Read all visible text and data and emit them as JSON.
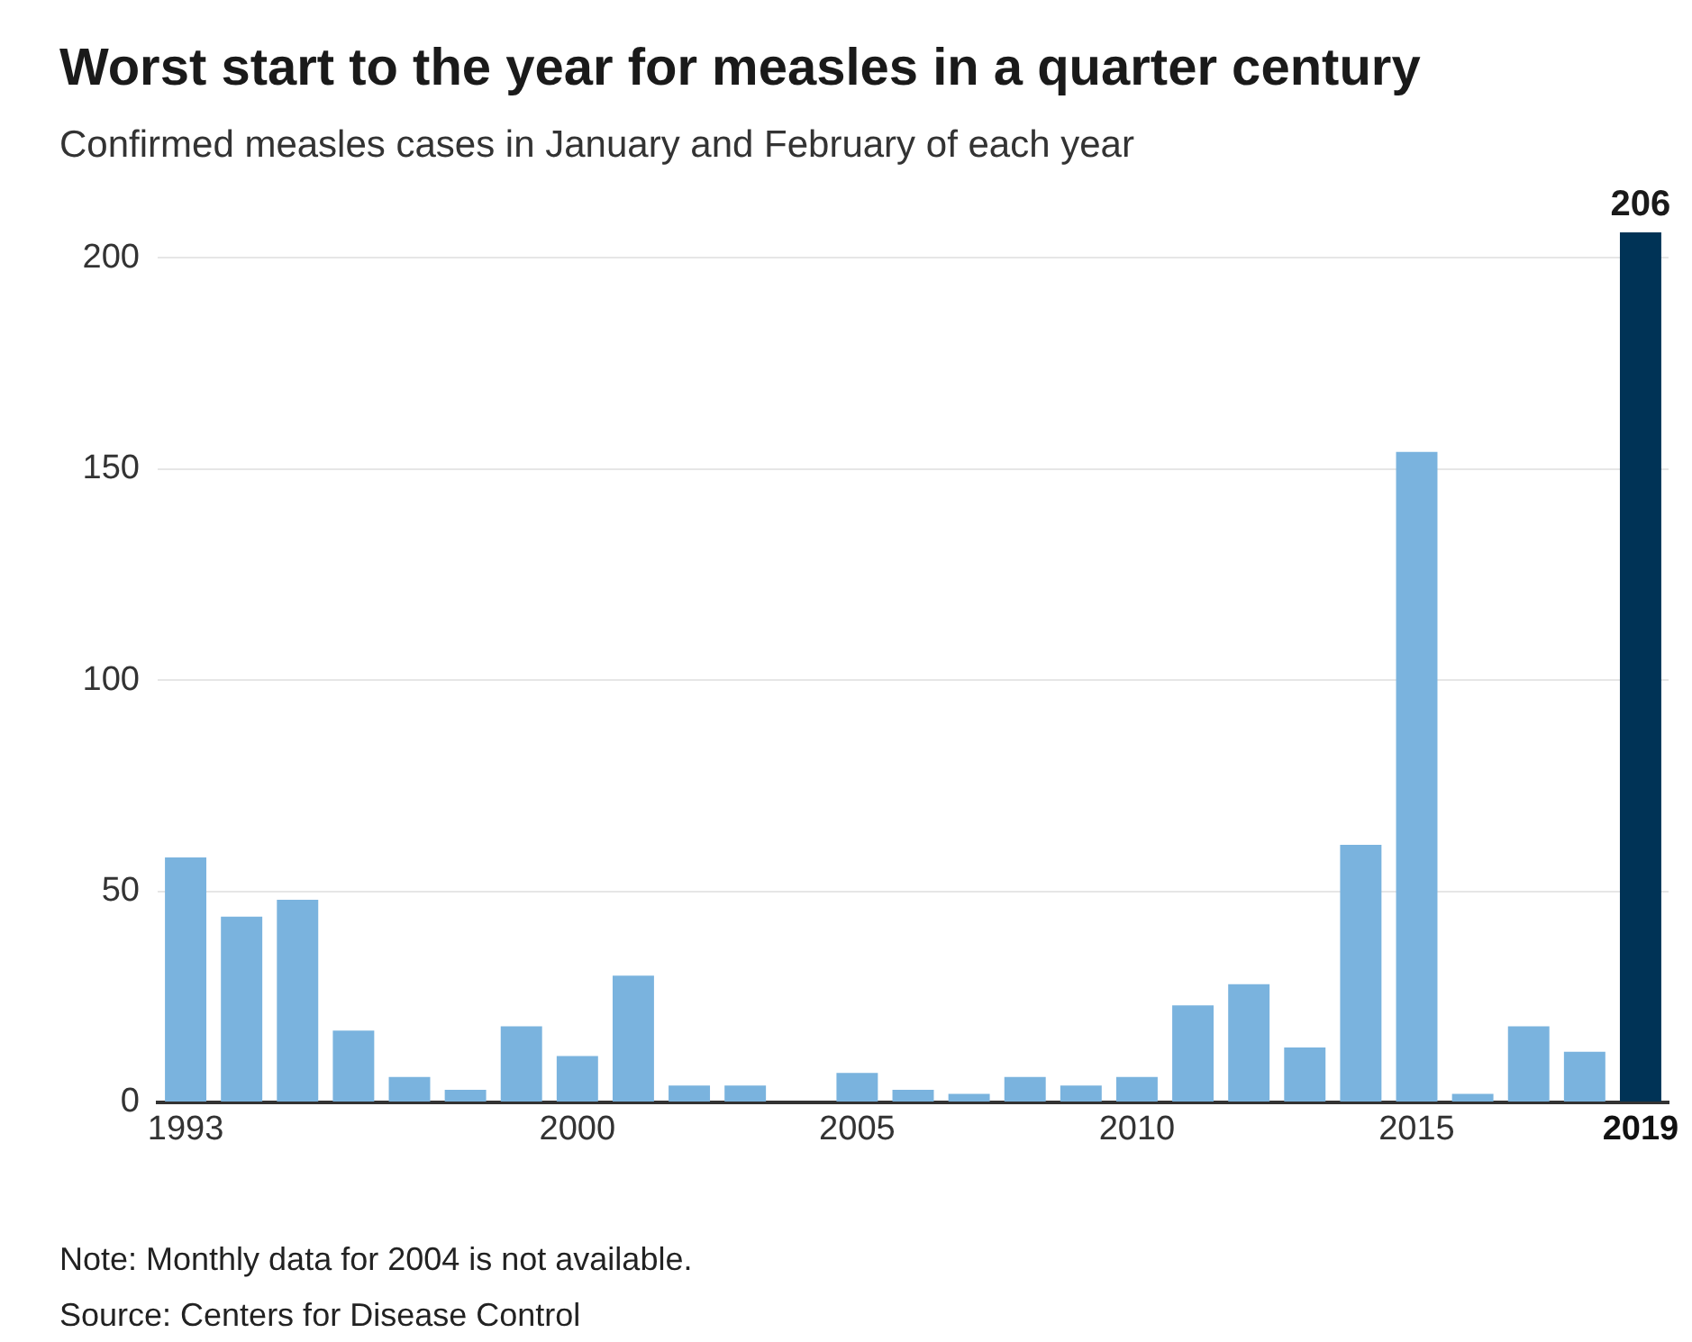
{
  "chart_data": {
    "type": "bar",
    "title": "Worst start to the year for measles in a quarter century",
    "subtitle": "Confirmed measles cases in January and February of each year",
    "categories": [
      "1993",
      null,
      null,
      null,
      null,
      null,
      null,
      "2000",
      null,
      null,
      null,
      null,
      "2005",
      null,
      null,
      null,
      null,
      "2010",
      null,
      null,
      null,
      null,
      "2015",
      null,
      null,
      null,
      "2019"
    ],
    "values": [
      58,
      44,
      48,
      17,
      6,
      3,
      18,
      11,
      30,
      4,
      4,
      null,
      7,
      3,
      2,
      6,
      4,
      6,
      23,
      28,
      13,
      61,
      154,
      2,
      18,
      12,
      206
    ],
    "colors": [
      "#7ab3de",
      "#7ab3de",
      "#7ab3de",
      "#7ab3de",
      "#7ab3de",
      "#7ab3de",
      "#7ab3de",
      "#7ab3de",
      "#7ab3de",
      "#7ab3de",
      "#7ab3de",
      "#7ab3de",
      "#7ab3de",
      "#7ab3de",
      "#7ab3de",
      "#7ab3de",
      "#7ab3de",
      "#7ab3de",
      "#7ab3de",
      "#7ab3de",
      "#7ab3de",
      "#7ab3de",
      "#7ab3de",
      "#7ab3de",
      "#7ab3de",
      "#7ab3de",
      "#003356"
    ],
    "value_labels": [
      null,
      null,
      null,
      null,
      null,
      null,
      null,
      null,
      null,
      null,
      null,
      null,
      null,
      null,
      null,
      null,
      null,
      null,
      null,
      null,
      null,
      null,
      null,
      null,
      null,
      null,
      "206"
    ],
    "ylim": [
      0,
      206
    ],
    "yticks": [
      0,
      50,
      100,
      150,
      200
    ],
    "grid": "y",
    "annotations": [
      "Note: Monthly data for 2004 is not available.",
      "Source: Centers for Disease Control"
    ]
  }
}
